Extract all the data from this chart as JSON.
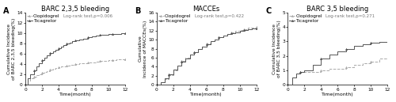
{
  "panels": [
    {
      "label": "A",
      "title": "BARC 2,3,5 bleeding",
      "ylabel": "Cumulative Incidence\nof BARC 2,3,5 bleeding(%)",
      "xlabel": "Time(month)",
      "logrank": "Log-rank test,p=0.006",
      "ylim": [
        0,
        14
      ],
      "yticks": [
        0,
        2,
        4,
        6,
        8,
        10,
        12,
        14
      ],
      "xticks": [
        0,
        2,
        4,
        6,
        8,
        10,
        12
      ],
      "clop_x": [
        0,
        0.3,
        0.6,
        1.0,
        1.3,
        1.6,
        2.0,
        2.3,
        2.6,
        3.0,
        3.3,
        3.6,
        4.0,
        4.3,
        4.6,
        5.0,
        5.3,
        5.6,
        6.0,
        6.5,
        7.0,
        7.5,
        8.0,
        8.5,
        9.0,
        9.5,
        10.0,
        10.5,
        11.0,
        11.5,
        12.0
      ],
      "clop_y": [
        0,
        0.8,
        1.2,
        1.6,
        1.9,
        2.1,
        2.3,
        2.5,
        2.7,
        2.9,
        3.1,
        3.2,
        3.4,
        3.5,
        3.6,
        3.7,
        3.8,
        3.9,
        4.0,
        4.1,
        4.2,
        4.3,
        4.4,
        4.5,
        4.6,
        4.7,
        4.8,
        4.85,
        4.9,
        4.95,
        5.0
      ],
      "tica_x": [
        0,
        0.3,
        0.6,
        1.0,
        1.3,
        1.6,
        2.0,
        2.3,
        2.6,
        3.0,
        3.3,
        3.6,
        4.0,
        4.3,
        4.6,
        5.0,
        5.3,
        5.6,
        6.0,
        6.5,
        7.0,
        7.5,
        8.0,
        8.5,
        9.0,
        9.5,
        10.0,
        10.5,
        11.0,
        11.5,
        12.0
      ],
      "tica_y": [
        0,
        1.2,
        2.0,
        2.8,
        3.5,
        4.2,
        4.8,
        5.3,
        5.7,
        6.1,
        6.5,
        6.8,
        7.1,
        7.4,
        7.7,
        8.0,
        8.2,
        8.4,
        8.6,
        8.8,
        9.0,
        9.2,
        9.4,
        9.55,
        9.65,
        9.75,
        9.82,
        9.88,
        9.92,
        9.96,
        10.0
      ]
    },
    {
      "label": "B",
      "title": "MACCEs",
      "ylabel": "Cumulative\nIncidence of MACCEs(%)",
      "xlabel": "Time(month)",
      "logrank": "Log-rank test,p=0.422",
      "ylim": [
        0,
        16
      ],
      "yticks": [
        0,
        2,
        4,
        6,
        8,
        10,
        12,
        14,
        16
      ],
      "xticks": [
        0,
        2,
        4,
        6,
        8,
        10,
        12
      ],
      "clop_x": [
        0,
        0.5,
        1.0,
        1.5,
        2.0,
        2.5,
        3.0,
        3.5,
        4.0,
        4.5,
        5.0,
        5.5,
        6.0,
        6.5,
        7.0,
        7.5,
        8.0,
        8.5,
        9.0,
        9.5,
        10.0,
        10.5,
        11.0,
        11.5,
        12.0
      ],
      "clop_y": [
        0,
        0.5,
        1.2,
        2.2,
        3.2,
        4.3,
        5.3,
        6.0,
        6.7,
        7.3,
        7.9,
        8.5,
        9.1,
        9.6,
        10.1,
        10.5,
        11.0,
        11.3,
        11.6,
        11.9,
        12.1,
        12.4,
        12.6,
        12.75,
        12.9
      ],
      "tica_x": [
        0,
        0.5,
        1.0,
        1.5,
        2.0,
        2.5,
        3.0,
        3.5,
        4.0,
        4.5,
        5.0,
        5.5,
        6.0,
        6.5,
        7.0,
        7.5,
        8.0,
        8.5,
        9.0,
        9.5,
        10.0,
        10.5,
        11.0,
        11.5,
        12.0
      ],
      "tica_y": [
        0,
        0.6,
        1.4,
        2.4,
        3.3,
        4.2,
        5.1,
        5.8,
        6.7,
        7.3,
        7.9,
        8.5,
        9.0,
        9.6,
        10.1,
        10.5,
        11.0,
        11.3,
        11.5,
        11.7,
        11.9,
        12.1,
        12.3,
        12.45,
        12.55
      ]
    },
    {
      "label": "C",
      "title": "BARC 3,5 bleeding",
      "ylabel": "Cumulative Incidence\nof BARC 3,5 bleeding(%)",
      "xlabel": "Time(month)",
      "logrank": "Log-rank test,p=0.271",
      "ylim": [
        0,
        5
      ],
      "yticks": [
        0,
        1,
        2,
        3,
        4,
        5
      ],
      "xticks": [
        0,
        2,
        4,
        6,
        8,
        10,
        12
      ],
      "clop_x": [
        0,
        0.5,
        1.0,
        1.5,
        2.0,
        3.0,
        4.0,
        5.0,
        6.0,
        7.0,
        8.0,
        9.0,
        10.0,
        11.0,
        12.0
      ],
      "clop_y": [
        0,
        0.5,
        0.8,
        0.9,
        0.9,
        0.9,
        1.0,
        1.1,
        1.1,
        1.2,
        1.4,
        1.5,
        1.6,
        1.8,
        2.0
      ],
      "tica_x": [
        0,
        0.5,
        1.0,
        1.5,
        2.0,
        3.0,
        4.0,
        5.0,
        6.0,
        7.0,
        8.0,
        9.0,
        10.0,
        11.0,
        12.0
      ],
      "tica_y": [
        0,
        0.5,
        0.8,
        0.9,
        1.0,
        1.4,
        1.8,
        2.1,
        2.3,
        2.5,
        2.7,
        2.8,
        2.9,
        2.95,
        3.0
      ]
    }
  ],
  "clop_color": "#aaaaaa",
  "tica_color": "#555555",
  "clop_style": "--",
  "tica_style": "-",
  "marker": "^",
  "markersize": 1.8,
  "linewidth": 0.7,
  "fontsize_title": 6.0,
  "fontsize_ylabel": 4.2,
  "fontsize_xlabel": 4.5,
  "fontsize_tick": 4.2,
  "fontsize_legend": 4.2,
  "fontsize_logrank": 4.0,
  "fontsize_panellabel": 7
}
